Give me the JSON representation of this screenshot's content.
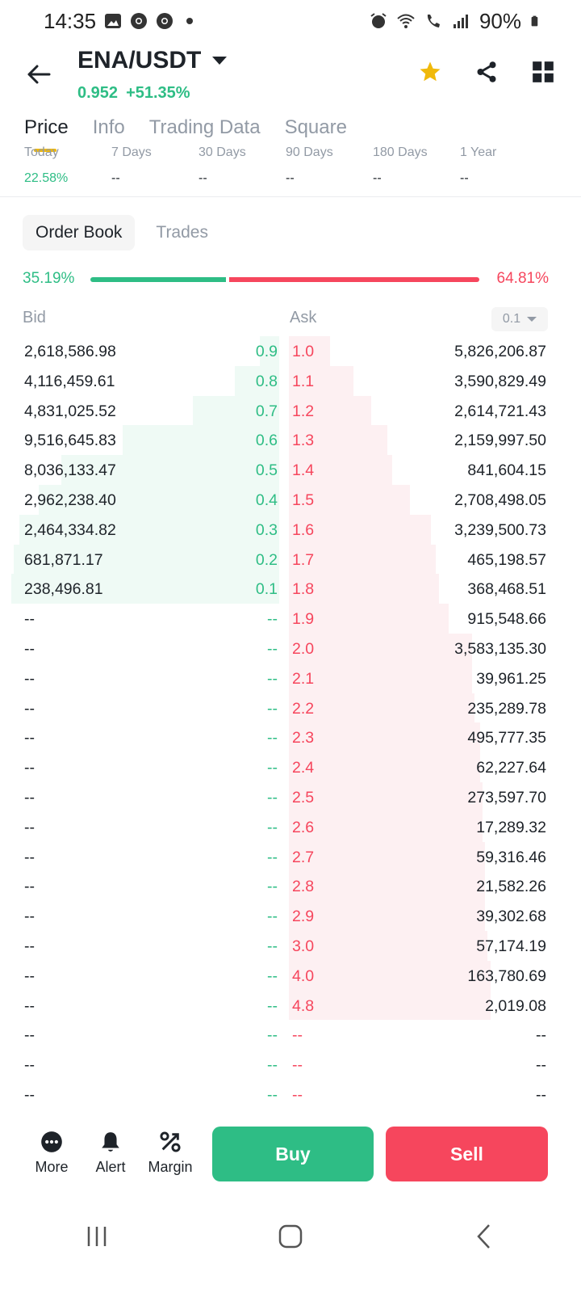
{
  "status_bar": {
    "time": "14:35",
    "battery": "90%"
  },
  "header": {
    "pair": "ENA/USDT",
    "last_price": "0.952",
    "change": "+51.35%"
  },
  "tabs": [
    {
      "label": "Price"
    },
    {
      "label": "Info"
    },
    {
      "label": "Trading Data"
    },
    {
      "label": "Square"
    }
  ],
  "performance": [
    {
      "label": "Today",
      "value": "22.58%"
    },
    {
      "label": "7 Days",
      "value": "--"
    },
    {
      "label": "30 Days",
      "value": "--"
    },
    {
      "label": "90 Days",
      "value": "--"
    },
    {
      "label": "180 Days",
      "value": "--"
    },
    {
      "label": "1 Year",
      "value": "--"
    }
  ],
  "orderbook": {
    "tabs": [
      {
        "label": "Order Book"
      },
      {
        "label": "Trades"
      }
    ],
    "bid_ratio": "35.19%",
    "ask_ratio": "64.81%",
    "bid_ratio_value": 35.19,
    "bid_header": "Bid",
    "ask_header": "Ask",
    "precision": "0.1",
    "rows": [
      {
        "bid_qty": "2,618,586.98",
        "bid_price": "0.9",
        "ask_price": "1.0",
        "ask_qty": "5,826,206.87",
        "bid_depth": 0.07,
        "ask_depth": 0.16
      },
      {
        "bid_qty": "4,116,459.61",
        "bid_price": "0.8",
        "ask_price": "1.1",
        "ask_qty": "3,590,829.49",
        "bid_depth": 0.16,
        "ask_depth": 0.25
      },
      {
        "bid_qty": "4,831,025.52",
        "bid_price": "0.7",
        "ask_price": "1.2",
        "ask_qty": "2,614,721.43",
        "bid_depth": 0.31,
        "ask_depth": 0.32
      },
      {
        "bid_qty": "9,516,645.83",
        "bid_price": "0.6",
        "ask_price": "1.3",
        "ask_qty": "2,159,997.50",
        "bid_depth": 0.56,
        "ask_depth": 0.38
      },
      {
        "bid_qty": "8,036,133.47",
        "bid_price": "0.5",
        "ask_price": "1.4",
        "ask_qty": "841,604.15",
        "bid_depth": 0.78,
        "ask_depth": 0.4
      },
      {
        "bid_qty": "2,962,238.40",
        "bid_price": "0.4",
        "ask_price": "1.5",
        "ask_qty": "2,708,498.05",
        "bid_depth": 0.86,
        "ask_depth": 0.47
      },
      {
        "bid_qty": "2,464,334.82",
        "bid_price": "0.3",
        "ask_price": "1.6",
        "ask_qty": "3,239,500.73",
        "bid_depth": 0.93,
        "ask_depth": 0.55
      },
      {
        "bid_qty": "681,871.17",
        "bid_price": "0.2",
        "ask_price": "1.7",
        "ask_qty": "465,198.57",
        "bid_depth": 0.95,
        "ask_depth": 0.57
      },
      {
        "bid_qty": "238,496.81",
        "bid_price": "0.1",
        "ask_price": "1.8",
        "ask_qty": "368,468.51",
        "bid_depth": 0.96,
        "ask_depth": 0.58
      },
      {
        "bid_qty": "--",
        "bid_price": "--",
        "ask_price": "1.9",
        "ask_qty": "915,548.66",
        "bid_depth": 0,
        "ask_depth": 0.62
      },
      {
        "bid_qty": "--",
        "bid_price": "--",
        "ask_price": "2.0",
        "ask_qty": "3,583,135.30",
        "bid_depth": 0,
        "ask_depth": 0.71
      },
      {
        "bid_qty": "--",
        "bid_price": "--",
        "ask_price": "2.1",
        "ask_qty": "39,961.25",
        "bid_depth": 0,
        "ask_depth": 0.71
      },
      {
        "bid_qty": "--",
        "bid_price": "--",
        "ask_price": "2.2",
        "ask_qty": "235,289.78",
        "bid_depth": 0,
        "ask_depth": 0.72
      },
      {
        "bid_qty": "--",
        "bid_price": "--",
        "ask_price": "2.3",
        "ask_qty": "495,777.35",
        "bid_depth": 0,
        "ask_depth": 0.74
      },
      {
        "bid_qty": "--",
        "bid_price": "--",
        "ask_price": "2.4",
        "ask_qty": "62,227.64",
        "bid_depth": 0,
        "ask_depth": 0.74
      },
      {
        "bid_qty": "--",
        "bid_price": "--",
        "ask_price": "2.5",
        "ask_qty": "273,597.70",
        "bid_depth": 0,
        "ask_depth": 0.75
      },
      {
        "bid_qty": "--",
        "bid_price": "--",
        "ask_price": "2.6",
        "ask_qty": "17,289.32",
        "bid_depth": 0,
        "ask_depth": 0.75
      },
      {
        "bid_qty": "--",
        "bid_price": "--",
        "ask_price": "2.7",
        "ask_qty": "59,316.46",
        "bid_depth": 0,
        "ask_depth": 0.76
      },
      {
        "bid_qty": "--",
        "bid_price": "--",
        "ask_price": "2.8",
        "ask_qty": "21,582.26",
        "bid_depth": 0,
        "ask_depth": 0.76
      },
      {
        "bid_qty": "--",
        "bid_price": "--",
        "ask_price": "2.9",
        "ask_qty": "39,302.68",
        "bid_depth": 0,
        "ask_depth": 0.76
      },
      {
        "bid_qty": "--",
        "bid_price": "--",
        "ask_price": "3.0",
        "ask_qty": "57,174.19",
        "bid_depth": 0,
        "ask_depth": 0.77
      },
      {
        "bid_qty": "--",
        "bid_price": "--",
        "ask_price": "4.0",
        "ask_qty": "163,780.69",
        "bid_depth": 0,
        "ask_depth": 0.78
      },
      {
        "bid_qty": "--",
        "bid_price": "--",
        "ask_price": "4.8",
        "ask_qty": "2,019.08",
        "bid_depth": 0,
        "ask_depth": 0.78
      },
      {
        "bid_qty": "--",
        "bid_price": "--",
        "ask_price": "--",
        "ask_qty": "--",
        "bid_depth": 0,
        "ask_depth": 0
      },
      {
        "bid_qty": "--",
        "bid_price": "--",
        "ask_price": "--",
        "ask_qty": "--",
        "bid_depth": 0,
        "ask_depth": 0
      },
      {
        "bid_qty": "--",
        "bid_price": "--",
        "ask_price": "--",
        "ask_qty": "--",
        "bid_depth": 0,
        "ask_depth": 0
      }
    ]
  },
  "actions": {
    "more": "More",
    "alert": "Alert",
    "margin": "Margin",
    "buy": "Buy",
    "sell": "Sell"
  },
  "colors": {
    "up": "#2ebd85",
    "down": "#f6465d",
    "accent": "#f0b90b"
  }
}
